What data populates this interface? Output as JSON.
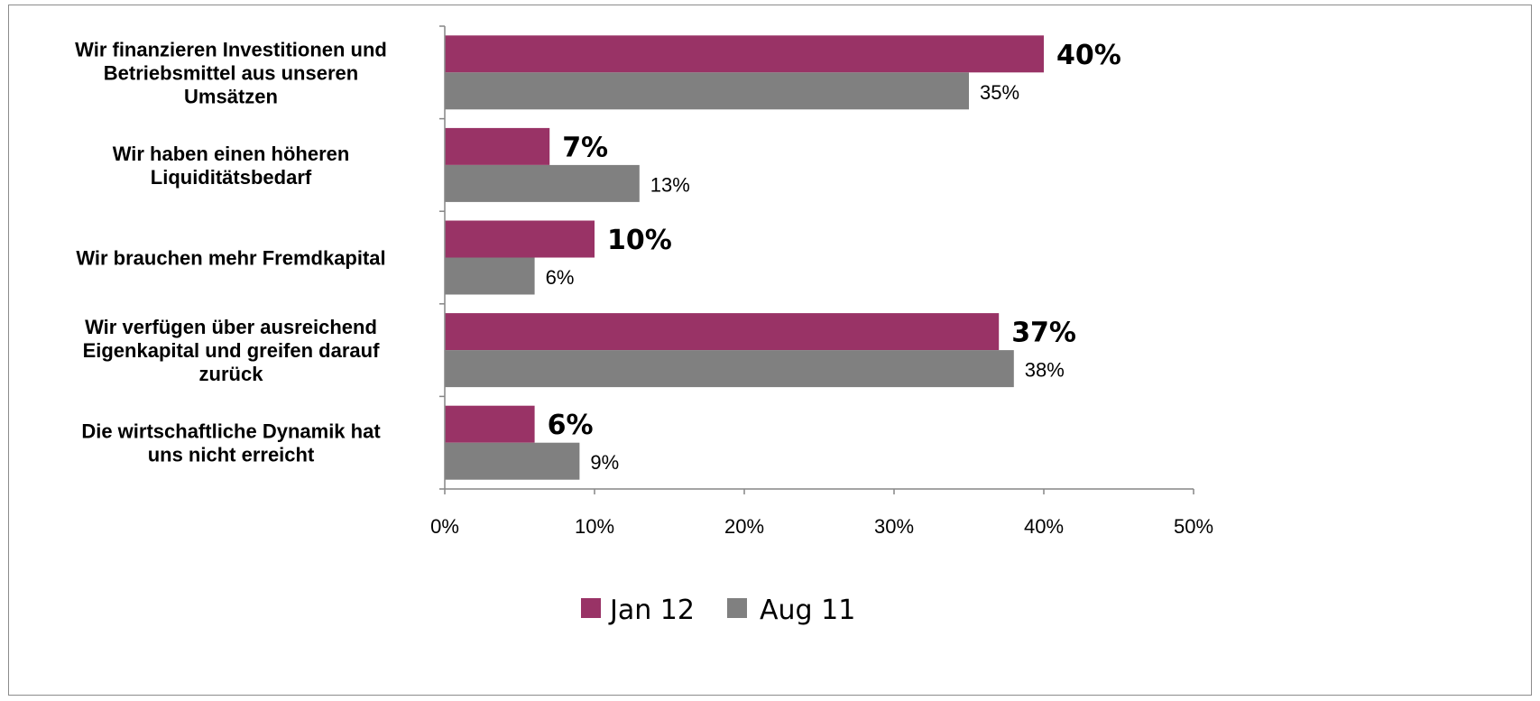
{
  "chart_data": {
    "type": "bar",
    "orientation": "horizontal",
    "categories": [
      [
        "Wir finanzieren Investitionen und",
        "Betriebsmittel aus unseren",
        "Umsätzen"
      ],
      [
        "Wir haben einen höheren",
        "Liquiditätsbedarf"
      ],
      [
        "Wir brauchen mehr Fremdkapital"
      ],
      [
        "Wir verfügen über ausreichend",
        "Eigenkapital und greifen darauf",
        "zurück"
      ],
      [
        "Die wirtschaftliche  Dynamik hat",
        "uns nicht erreicht"
      ]
    ],
    "series": [
      {
        "name": "Jan 12",
        "color": "#993366",
        "values": [
          40,
          7,
          10,
          37,
          6
        ],
        "labels": [
          "40%",
          "7%",
          "10%",
          "37%",
          "6%"
        ]
      },
      {
        "name": "Aug 11",
        "color": "#808080",
        "values": [
          35,
          13,
          6,
          38,
          9
        ],
        "labels": [
          "35%",
          "13%",
          "6%",
          "38%",
          "9%"
        ]
      }
    ],
    "xlim": [
      0,
      50
    ],
    "xticks": [
      0,
      10,
      20,
      30,
      40,
      50
    ],
    "xtick_labels": [
      "0%",
      "10%",
      "20%",
      "30%",
      "40%",
      "50%"
    ],
    "grid": false,
    "legend_position": "bottom"
  }
}
